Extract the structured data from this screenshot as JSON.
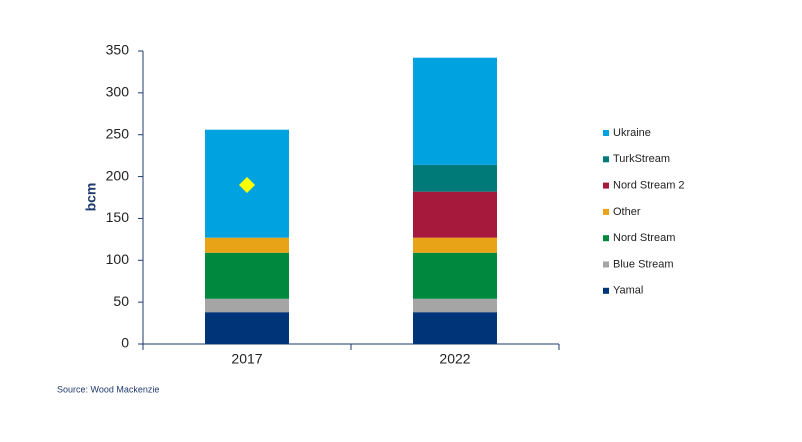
{
  "chart_data": {
    "type": "bar",
    "stacked": true,
    "y_label": "bcm",
    "source": "Source: Wood Mackenzie",
    "categories": [
      "2017",
      "2022"
    ],
    "series": [
      {
        "name": "Yamal",
        "color": "#003478",
        "values": [
          38,
          38
        ]
      },
      {
        "name": "Blue Stream",
        "color": "#a5a5a5",
        "values": [
          16,
          16
        ]
      },
      {
        "name": "Nord Stream",
        "color": "#00883e",
        "values": [
          55,
          55
        ]
      },
      {
        "name": "Other",
        "color": "#e8a317",
        "values": [
          18,
          18
        ]
      },
      {
        "name": "Nord Stream 2",
        "color": "#a6193c",
        "values": [
          0,
          55
        ]
      },
      {
        "name": "TurkStream",
        "color": "#007a78",
        "values": [
          0,
          32
        ]
      },
      {
        "name": "Ukraine",
        "color": "#00a3e0",
        "values": [
          129,
          128
        ]
      }
    ],
    "points": {
      "color": "#ffff00",
      "values": [
        190,
        null
      ]
    },
    "ylim": [
      0,
      350
    ],
    "yticks": [
      0,
      50,
      100,
      150,
      200,
      250,
      300,
      350
    ],
    "grid": false,
    "legend": "right"
  }
}
